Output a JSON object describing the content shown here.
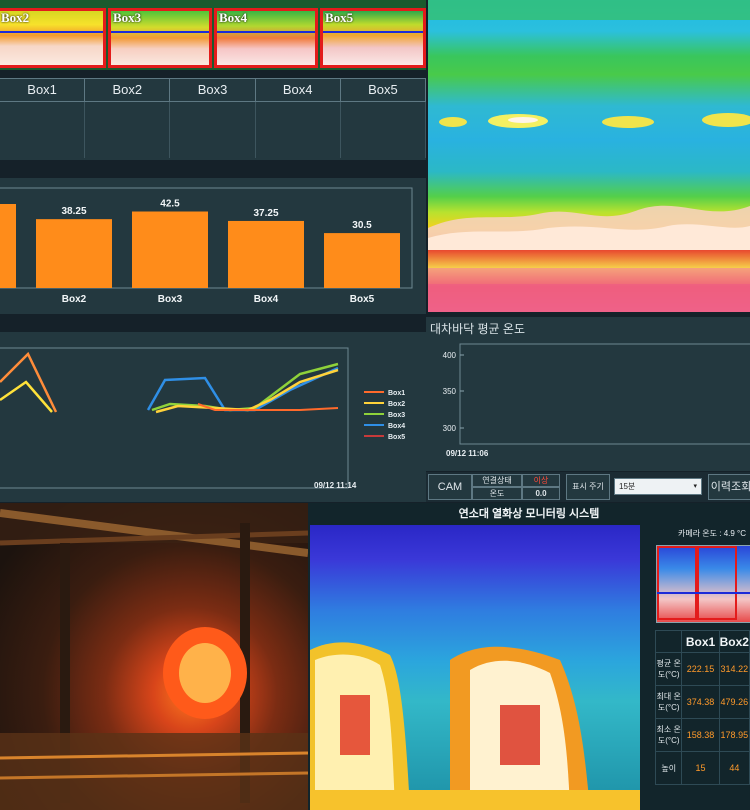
{
  "thermal_strip": {
    "boxes": [
      "Box2",
      "Box3",
      "Box4",
      "Box5"
    ]
  },
  "box_table": {
    "headers": [
      "Box1",
      "Box2",
      "Box3",
      "Box4",
      "Box5"
    ]
  },
  "bar_chart": {
    "chart_data": {
      "type": "bar",
      "categories": [
        "Box2",
        "Box3",
        "Box4",
        "Box5"
      ],
      "values": [
        38.25,
        42.5,
        37.25,
        30.5
      ],
      "value_labels": [
        "38.25",
        "42.5",
        "37.25",
        "30.5"
      ],
      "bar_color": "#ff8c1a"
    }
  },
  "line_chart": {
    "legend": [
      "Box1",
      "Box2",
      "Box3",
      "Box4",
      "Box5"
    ],
    "colors": [
      "#ff6a2b",
      "#ffd23a",
      "#8fd23a",
      "#2f8fe6",
      "#c73a3a"
    ],
    "timestamp": "09/12 11:14"
  },
  "avg_chart": {
    "title": "대차바닥 평균 온도",
    "y_ticks": [
      "400",
      "350",
      "300"
    ],
    "timestamp": "09/12 11:06"
  },
  "controls": {
    "cam_label": "CAM",
    "conn_label": "연결상태",
    "conn_status": "이상",
    "temp_label": "온도",
    "temp_value": "0.0",
    "interval_label": "표시 주기",
    "interval_value": "15분",
    "history_button": "이력조회"
  },
  "monitor": {
    "title": "연소대 열화상 모니터링 시스템",
    "camera_temp_label": "카메라 온도 : 4.9 °C",
    "columns": [
      "Box1",
      "Box2"
    ],
    "rows": [
      {
        "label": "평균 온도(°C)",
        "values": [
          "222.15",
          "314.22"
        ]
      },
      {
        "label": "최대 온도(°C)",
        "values": [
          "374.38",
          "479.26"
        ]
      },
      {
        "label": "최소 온도(°C)",
        "values": [
          "158.38",
          "178.95"
        ]
      },
      {
        "label": "높이",
        "values": [
          "15",
          "44"
        ]
      }
    ]
  }
}
